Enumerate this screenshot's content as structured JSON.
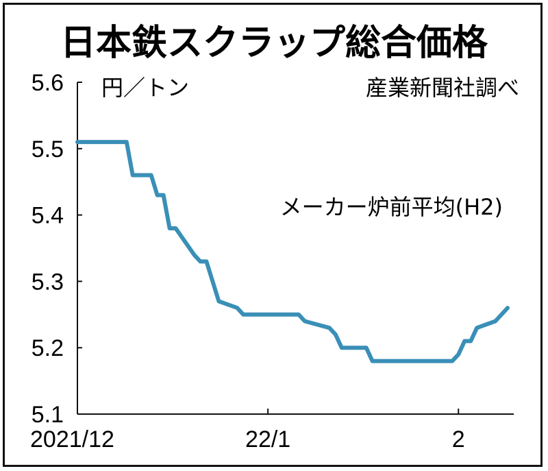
{
  "chart_data": {
    "type": "line",
    "title": "日本鉄スクラップ総合価格",
    "unit_label": "円／トン",
    "source_label": "産業新聞社調べ",
    "ylim": [
      5.1,
      5.6
    ],
    "yticks": [
      "5.6",
      "5.5",
      "5.4",
      "5.3",
      "5.2",
      "5.1"
    ],
    "xticks": [
      {
        "label": "2021/12",
        "x": 0
      },
      {
        "label": "22/1",
        "x": 31
      },
      {
        "label": "2",
        "x": 62
      }
    ],
    "xlim": [
      0,
      71
    ],
    "series": [
      {
        "name": "メーカー炉前平均(H2)",
        "color": "#3a8fb7",
        "points": [
          [
            0,
            5.51
          ],
          [
            8,
            5.51
          ],
          [
            9,
            5.46
          ],
          [
            12,
            5.46
          ],
          [
            13,
            5.43
          ],
          [
            14,
            5.43
          ],
          [
            15,
            5.38
          ],
          [
            16,
            5.38
          ],
          [
            19,
            5.34
          ],
          [
            20,
            5.33
          ],
          [
            21,
            5.33
          ],
          [
            23,
            5.27
          ],
          [
            26,
            5.26
          ],
          [
            27,
            5.25
          ],
          [
            36,
            5.25
          ],
          [
            37,
            5.24
          ],
          [
            41,
            5.23
          ],
          [
            42,
            5.22
          ],
          [
            43,
            5.2
          ],
          [
            47,
            5.2
          ],
          [
            48,
            5.18
          ],
          [
            61,
            5.18
          ],
          [
            62,
            5.19
          ],
          [
            63,
            5.21
          ],
          [
            64,
            5.21
          ],
          [
            65,
            5.23
          ],
          [
            68,
            5.24
          ],
          [
            70,
            5.26
          ]
        ]
      }
    ]
  }
}
